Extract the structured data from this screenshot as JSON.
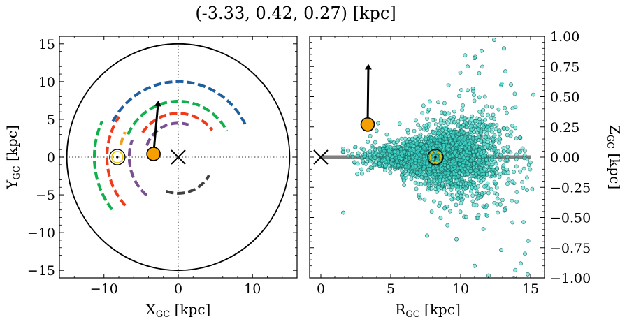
{
  "title": "(-3.33, 0.42, 0.27) [kpc]",
  "chart_data": [
    {
      "type": "line",
      "panel": "left",
      "xlabel": {
        "main": "X",
        "sub": "GC",
        "unit": " [kpc]"
      },
      "ylabel": {
        "main": "Y",
        "sub": "GC",
        "unit": " [kpc]"
      },
      "xlim": [
        -16,
        16
      ],
      "ylim": [
        -16,
        16
      ],
      "xticks": [
        -10,
        0,
        10
      ],
      "yticks": [
        -15,
        -10,
        -5,
        0,
        5,
        10,
        15
      ],
      "xtick_labels": [
        "−10",
        "0",
        "10"
      ],
      "ytick_labels": [
        "−15",
        "−10",
        "−5",
        "0",
        "5",
        "10",
        "15"
      ],
      "boundary_circle_radius": 15,
      "galactic_center": {
        "x": 0,
        "y": 0
      },
      "sun": {
        "x": -8.2,
        "y": 0
      },
      "object": {
        "x": -3.33,
        "y": 0.42
      },
      "velocity_arrow": {
        "x0": -3.33,
        "y0": 0.42,
        "x1": -2.7,
        "y1": 7.3
      },
      "arms": [
        {
          "color": "#1f5fa0",
          "radius": 10.0,
          "start_deg": 152,
          "end_deg": 24
        },
        {
          "color": "#10b04a",
          "radius": 11.3,
          "start_deg": 218,
          "end_deg": 155
        },
        {
          "color": "#10b04a",
          "radius": 7.4,
          "start_deg": 156,
          "end_deg": 28
        },
        {
          "color": "#f0a020",
          "radius": 7.9,
          "start_deg": 168,
          "end_deg": 155
        },
        {
          "color": "#f03a1a",
          "radius": 9.6,
          "start_deg": 222,
          "end_deg": 146
        },
        {
          "color": "#f03a1a",
          "radius": 5.8,
          "start_deg": 146,
          "end_deg": 38
        },
        {
          "color": "#7a5093",
          "radius": 6.6,
          "start_deg": 230,
          "end_deg": 160
        },
        {
          "color": "#7a5093",
          "radius": 4.5,
          "start_deg": 160,
          "end_deg": 72
        },
        {
          "color": "#404040",
          "radius": 4.8,
          "start_deg": 250,
          "end_deg": 330
        }
      ]
    },
    {
      "type": "scatter",
      "panel": "right",
      "xlabel": {
        "main": "R",
        "sub": "GC",
        "unit": " [kpc]"
      },
      "ylabel": {
        "main": "Z",
        "sub": "GC",
        "unit": " [kpc]"
      },
      "xlim": [
        -0.8,
        16
      ],
      "ylim": [
        -1.0,
        1.0
      ],
      "xticks": [
        0,
        5,
        10,
        15
      ],
      "yticks": [
        -1.0,
        -0.75,
        -0.5,
        -0.25,
        0.0,
        0.25,
        0.5,
        0.75,
        1.0
      ],
      "xtick_labels": [
        "0",
        "5",
        "10",
        "15"
      ],
      "ytick_labels": [
        "−1.00",
        "−0.75",
        "−0.50",
        "−0.25",
        "0.00",
        "0.25",
        "0.50",
        "0.75",
        "1.00"
      ],
      "point_color": "#40e0d0",
      "disk_line": {
        "x0": 0,
        "x1": 15,
        "z": 0,
        "color": "#808080"
      },
      "galactic_center": {
        "x": 0,
        "y": 0
      },
      "sun": {
        "x": 8.2,
        "y": 0
      },
      "object": {
        "x": 3.35,
        "y": 0.27
      },
      "velocity_arrow": {
        "x0": 3.35,
        "y0": 0.27,
        "x1": 3.4,
        "y1": 0.76
      },
      "cloud": {
        "n": 2600,
        "x_mean": 8.5,
        "x_sd": 2.3,
        "x_min": 1.5,
        "x_max": 15.2,
        "z_core_sd": 0.05,
        "z_flare": 0.021
      },
      "outliers": [
        {
          "x": 1.6,
          "y": -0.46
        },
        {
          "x": 4.1,
          "y": 0.28
        },
        {
          "x": 12.4,
          "y": 0.97
        },
        {
          "x": 11.5,
          "y": 0.88
        },
        {
          "x": 13.2,
          "y": 0.71
        },
        {
          "x": 11.0,
          "y": 0.82
        },
        {
          "x": 14.8,
          "y": -0.97
        },
        {
          "x": 14.3,
          "y": -0.88
        },
        {
          "x": 13.8,
          "y": -1.0
        },
        {
          "x": 12.0,
          "y": -0.98
        },
        {
          "x": 11.0,
          "y": -0.9
        },
        {
          "x": 14.6,
          "y": -0.8
        },
        {
          "x": 12.9,
          "y": -0.77
        },
        {
          "x": 13.1,
          "y": 0.9
        },
        {
          "x": 10.5,
          "y": 0.75
        },
        {
          "x": 9.7,
          "y": -0.68
        },
        {
          "x": 7.6,
          "y": -0.65
        },
        {
          "x": 13.6,
          "y": 0.6
        }
      ]
    }
  ]
}
